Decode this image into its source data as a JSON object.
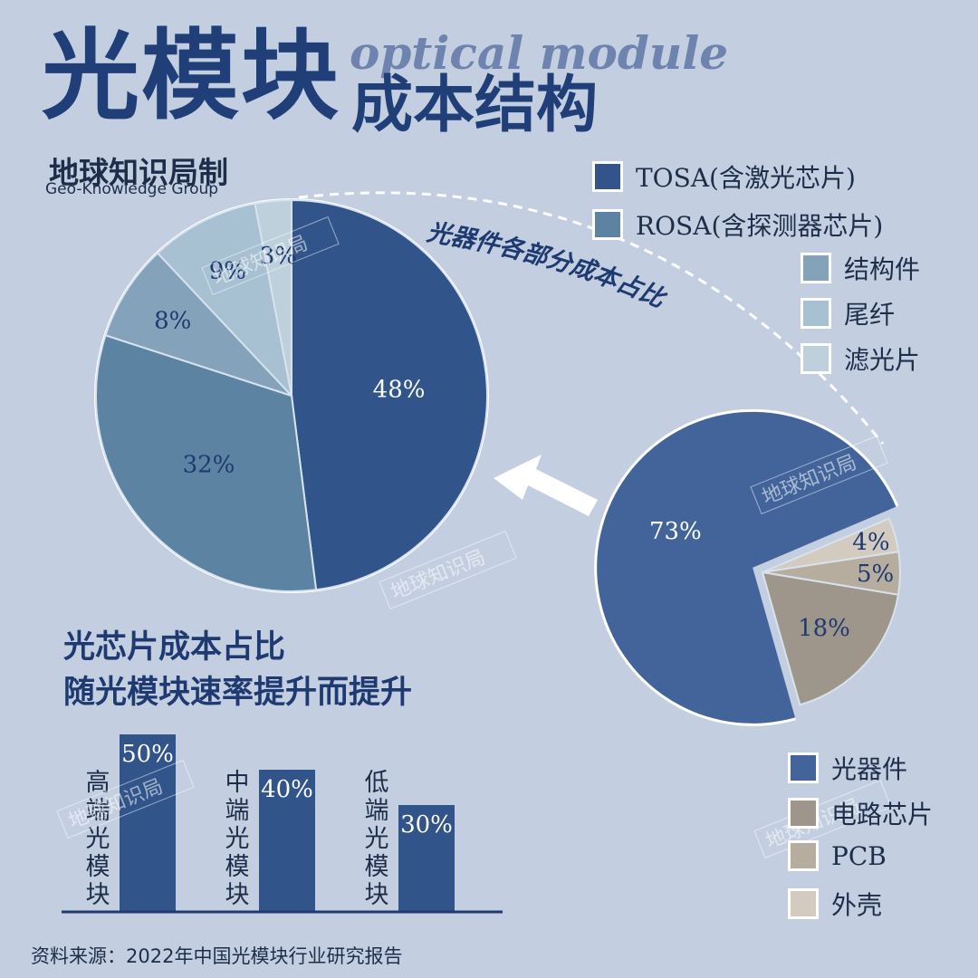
{
  "header": {
    "title_main": "光模块",
    "title_sub": "成本结构",
    "title_en": "optical module",
    "org": "地球知识局制",
    "org_en": "Geo-Knowledge Group",
    "callout": "光器件各部分成本占比",
    "watermark": "地球知识局"
  },
  "bar_section": {
    "title_line1": "光芯片成本占比",
    "title_line2": "随光模块速率提升而提升"
  },
  "source": "资料来源：2022年中国光模块行业研究报告",
  "chart_data": [
    {
      "type": "pie",
      "title": "",
      "labels": [
        "TOSA(含激光芯片)",
        "ROSA(含探测器芯片)",
        "结构件",
        "尾纤",
        "滤光片"
      ],
      "values": [
        48,
        32,
        8,
        9,
        3
      ],
      "value_labels": [
        "48%",
        "32%",
        "8%",
        "9%",
        "3%"
      ],
      "colors": [
        "#31548a",
        "#5c83a1",
        "#84a3ba",
        "#a7c0d2",
        "#bfd0dd"
      ],
      "legend": "top-right"
    },
    {
      "type": "pie",
      "title": "",
      "labels": [
        "光器件",
        "电路芯片",
        "PCB",
        "外壳"
      ],
      "values": [
        73,
        18,
        5,
        4
      ],
      "value_labels": [
        "73%",
        "18%",
        "5%",
        "4%"
      ],
      "colors": [
        "#42649a",
        "#9e968a",
        "#b7ad9f",
        "#d3cbc0"
      ],
      "legend": "bottom-right",
      "exploded": "光器件"
    },
    {
      "type": "bar",
      "title": "",
      "categories": [
        "高端光模块",
        "中端光模块",
        "低端光模块"
      ],
      "values": [
        50,
        40,
        30
      ],
      "value_labels": [
        "50%",
        "40%",
        "30%"
      ],
      "ylim": [
        0,
        50
      ],
      "color": "#31548a",
      "grid": false
    }
  ]
}
